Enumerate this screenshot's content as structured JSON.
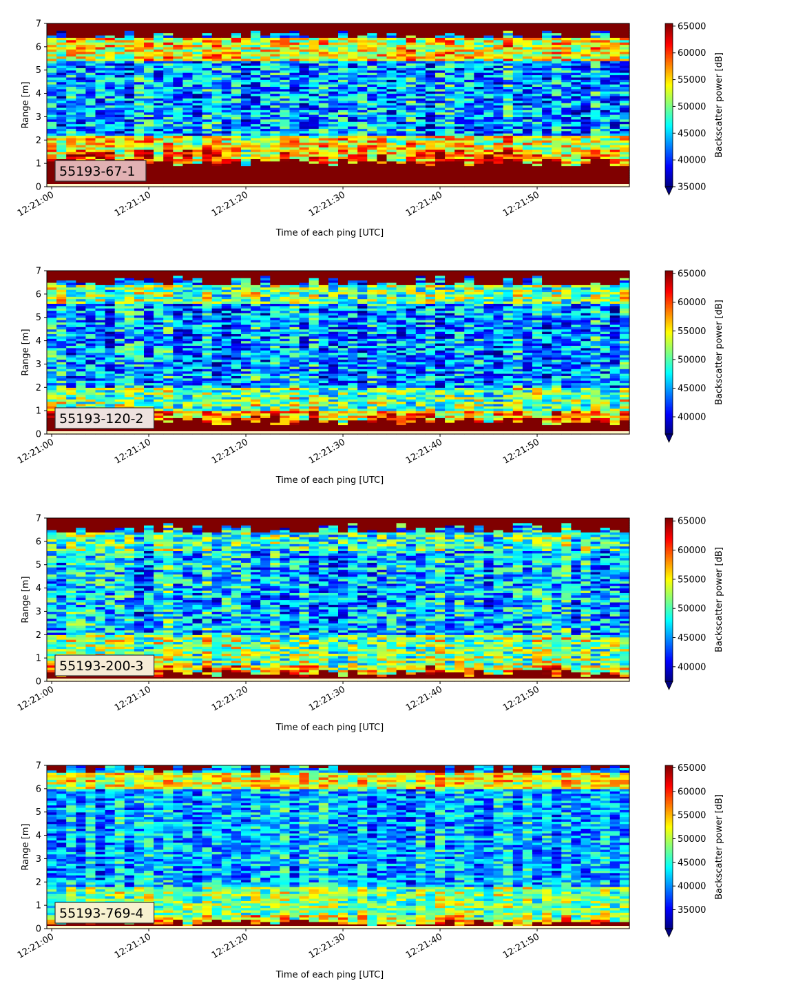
{
  "chart_data": [
    {
      "type": "heatmap",
      "label_box": "55193-67-1",
      "xlabel": "Time of each ping [UTC]",
      "ylabel": "Range [m]",
      "ylim": [
        0,
        7
      ],
      "yticks": [
        "0",
        "1",
        "2",
        "3",
        "4",
        "5",
        "6",
        "7"
      ],
      "xlim_seconds": [
        -0.5,
        59.5
      ],
      "xticks": [
        {
          "t": 0,
          "label": "12:21:00"
        },
        {
          "t": 10,
          "label": "12:21:10"
        },
        {
          "t": 20,
          "label": "12:21:20"
        },
        {
          "t": 30,
          "label": "12:21:30"
        },
        {
          "t": 40,
          "label": "12:21:40"
        },
        {
          "t": 50,
          "label": "12:21:50"
        }
      ],
      "colorbar": {
        "label": "Backscatter power [dB]",
        "vmin": 35000,
        "vmax": 65500,
        "ticks": [
          35000,
          40000,
          45000,
          50000,
          55000,
          60000,
          65000
        ],
        "extend": "min"
      },
      "label_box_color": "#e1b1b3",
      "profile": {
        "bottom_sat": 1.05,
        "bottom_band_top": 1.6,
        "bottom_band_level": 0.72,
        "low_band": [
          1.5,
          2.2
        ],
        "low_band_level": 0.62,
        "mid_level": 0.28,
        "upper_band": [
          5.4,
          6.4
        ],
        "upper_band_level": 0.62,
        "top_sat_from": 6.45,
        "ramp_variation": 0.45
      }
    },
    {
      "type": "heatmap",
      "label_box": "55193-120-2",
      "xlabel": "Time of each ping [UTC]",
      "ylabel": "Range [m]",
      "ylim": [
        0,
        7
      ],
      "yticks": [
        "0",
        "1",
        "2",
        "3",
        "4",
        "5",
        "6",
        "7"
      ],
      "xlim_seconds": [
        -0.5,
        59.5
      ],
      "xticks": [
        {
          "t": 0,
          "label": "12:21:00"
        },
        {
          "t": 10,
          "label": "12:21:10"
        },
        {
          "t": 20,
          "label": "12:21:20"
        },
        {
          "t": 30,
          "label": "12:21:30"
        },
        {
          "t": 40,
          "label": "12:21:40"
        },
        {
          "t": 50,
          "label": "12:21:50"
        }
      ],
      "colorbar": {
        "label": "Backscatter power [dB]",
        "vmin": 37000,
        "vmax": 65500,
        "ticks": [
          40000,
          45000,
          50000,
          55000,
          60000,
          65000
        ],
        "extend": "min"
      },
      "label_box_color": "#eee2df",
      "profile": {
        "bottom_sat": 0.55,
        "bottom_band_top": 1.0,
        "bottom_band_level": 0.7,
        "low_band": [
          1.0,
          2.0
        ],
        "low_band_level": 0.5,
        "mid_level": 0.28,
        "upper_band": [
          5.6,
          6.4
        ],
        "upper_band_level": 0.5,
        "top_sat_from": 6.5,
        "ramp_variation": 0.45
      }
    },
    {
      "type": "heatmap",
      "label_box": "55193-200-3",
      "xlabel": "Time of each ping [UTC]",
      "ylabel": "Range [m]",
      "ylim": [
        0,
        7
      ],
      "yticks": [
        "0",
        "1",
        "2",
        "3",
        "4",
        "5",
        "6",
        "7"
      ],
      "xlim_seconds": [
        -0.5,
        59.5
      ],
      "xticks": [
        {
          "t": 0,
          "label": "12:21:00"
        },
        {
          "t": 10,
          "label": "12:21:10"
        },
        {
          "t": 20,
          "label": "12:21:20"
        },
        {
          "t": 30,
          "label": "12:21:30"
        },
        {
          "t": 40,
          "label": "12:21:40"
        },
        {
          "t": 50,
          "label": "12:21:50"
        }
      ],
      "colorbar": {
        "label": "Backscatter power [dB]",
        "vmin": 37500,
        "vmax": 65500,
        "ticks": [
          40000,
          45000,
          50000,
          55000,
          60000,
          65000
        ],
        "extend": "min"
      },
      "label_box_color": "#f6ecd6",
      "profile": {
        "bottom_sat": 0.35,
        "bottom_band_top": 0.75,
        "bottom_band_level": 0.68,
        "low_band": [
          0.7,
          2.0
        ],
        "low_band_level": 0.52,
        "mid_level": 0.32,
        "upper_band": [
          5.6,
          6.4
        ],
        "upper_band_level": 0.45,
        "top_sat_from": 6.5,
        "ramp_variation": 0.45
      }
    },
    {
      "type": "heatmap",
      "label_box": "55193-769-4",
      "xlabel": "Time of each ping [UTC]",
      "ylabel": "Range [m]",
      "ylim": [
        0,
        7
      ],
      "yticks": [
        "0",
        "1",
        "2",
        "3",
        "4",
        "5",
        "6",
        "7"
      ],
      "xlim_seconds": [
        -0.5,
        59.5
      ],
      "xticks": [
        {
          "t": 0,
          "label": "12:21:00"
        },
        {
          "t": 10,
          "label": "12:21:10"
        },
        {
          "t": 20,
          "label": "12:21:20"
        },
        {
          "t": 30,
          "label": "12:21:30"
        },
        {
          "t": 40,
          "label": "12:21:40"
        },
        {
          "t": 50,
          "label": "12:21:50"
        }
      ],
      "colorbar": {
        "label": "Backscatter power [dB]",
        "vmin": 31000,
        "vmax": 65500,
        "ticks": [
          35000,
          40000,
          45000,
          50000,
          55000,
          60000,
          65000
        ],
        "extend": "min"
      },
      "label_box_color": "#f7f1cf",
      "profile": {
        "bottom_sat": 0.25,
        "bottom_band_top": 0.6,
        "bottom_band_level": 0.62,
        "low_band": [
          0.6,
          1.8
        ],
        "low_band_level": 0.5,
        "mid_level": 0.3,
        "upper_band": [
          6.0,
          6.7
        ],
        "upper_band_level": 0.62,
        "top_sat_from": 6.85,
        "ramp_variation": 0.35
      }
    }
  ]
}
